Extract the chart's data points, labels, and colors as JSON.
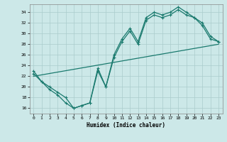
{
  "xlabel": "Humidex (Indice chaleur)",
  "bg_color": "#cce8e8",
  "line_color": "#1a7a6e",
  "grid_color": "#aacccc",
  "xlim": [
    -0.5,
    23.5
  ],
  "ylim": [
    15.0,
    35.5
  ],
  "xticks": [
    0,
    1,
    2,
    3,
    4,
    5,
    6,
    7,
    8,
    9,
    10,
    11,
    12,
    13,
    14,
    15,
    16,
    17,
    18,
    19,
    20,
    21,
    22,
    23
  ],
  "yticks": [
    16,
    18,
    20,
    22,
    24,
    26,
    28,
    30,
    32,
    34
  ],
  "curve1_x": [
    0,
    1,
    2,
    3,
    4,
    5,
    6,
    7,
    8,
    9,
    10,
    11,
    12,
    13,
    14,
    15,
    16,
    17,
    18,
    19,
    20,
    21,
    22,
    23
  ],
  "curve1_y": [
    23,
    21,
    19.5,
    18.5,
    17,
    16,
    16.5,
    17,
    23.5,
    20,
    26,
    29,
    31,
    28.5,
    33,
    34,
    33.5,
    34,
    35,
    34,
    33,
    32,
    29.5,
    28.5
  ],
  "curve2_x": [
    0,
    1,
    2,
    3,
    4,
    5,
    6,
    7,
    8,
    9,
    10,
    11,
    12,
    13,
    14,
    15,
    16,
    17,
    18,
    19,
    20,
    21,
    22,
    23
  ],
  "curve2_y": [
    22.5,
    21,
    20,
    19,
    18,
    16,
    16.5,
    17,
    23,
    20,
    25.5,
    28.5,
    30.5,
    28,
    32.5,
    33.5,
    33,
    33.5,
    34.5,
    33.5,
    33,
    31.5,
    29,
    28.5
  ],
  "line_x": [
    0,
    23
  ],
  "line_y": [
    22,
    28
  ]
}
